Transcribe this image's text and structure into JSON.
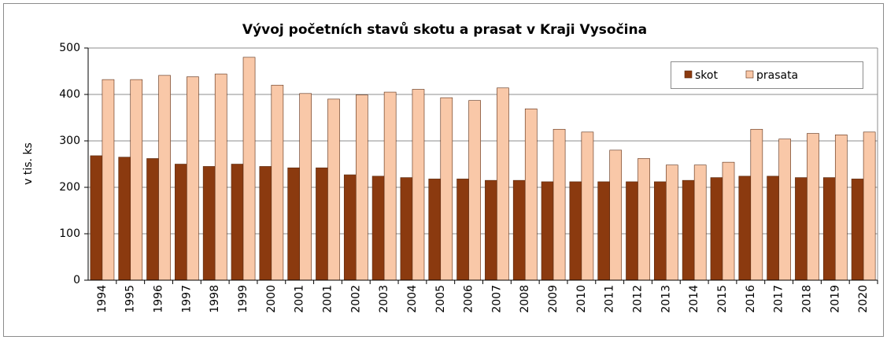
{
  "chart_data": {
    "type": "bar",
    "title": "Vývoj početních stavů skotu a prasat v Kraji Vysočina",
    "ylabel": "v tis. ks",
    "categories": [
      "1994",
      "1995",
      "1996",
      "1997",
      "1998",
      "1999",
      "2000",
      "2001",
      "2001",
      "2002",
      "2003",
      "2004",
      "2005",
      "2006",
      "2007",
      "2008",
      "2009",
      "2010",
      "2011",
      "2012",
      "2013",
      "2014",
      "2015",
      "2016",
      "2017",
      "2018",
      "2019",
      "2020"
    ],
    "series": [
      {
        "name": "skot",
        "color": "#8b3a0f",
        "values": [
          268,
          265,
          262,
          250,
          245,
          250,
          245,
          242,
          242,
          227,
          224,
          221,
          218,
          218,
          215,
          215,
          212,
          212,
          212,
          212,
          212,
          215,
          221,
          224,
          224,
          221,
          221,
          218
        ]
      },
      {
        "name": "prasata",
        "color": "#f9c8a8",
        "values": [
          432,
          432,
          441,
          438,
          444,
          480,
          420,
          402,
          390,
          399,
          405,
          411,
          393,
          387,
          414,
          369,
          325,
          319,
          280,
          262,
          248,
          248,
          254,
          325,
          304,
          316,
          313,
          319
        ]
      }
    ],
    "ylim": [
      0,
      500
    ],
    "yticks": [
      0,
      100,
      200,
      300,
      400,
      500
    ],
    "grid": true,
    "legend": "upper right"
  }
}
